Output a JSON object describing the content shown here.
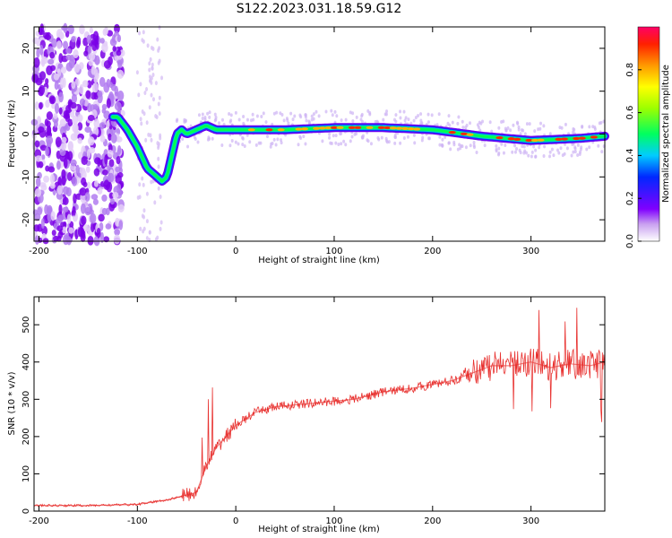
{
  "figure_title": "S122.2023.031.18.59.G12",
  "chart_data": [
    {
      "type": "heatmap",
      "xlabel": "Height of straight line (km)",
      "ylabel": "Frequency (Hz)",
      "xlim": [
        -205,
        375
      ],
      "ylim": [
        -25,
        25
      ],
      "x_ticks": [
        -200,
        -100,
        0,
        100,
        200,
        300
      ],
      "y_ticks": [
        -20,
        -10,
        0,
        10,
        20
      ],
      "colorbar": {
        "label": "Normalized spectral amplitude",
        "range": [
          0,
          1
        ],
        "ticks": [
          0.0,
          0.2,
          0.4,
          0.6,
          0.8
        ]
      },
      "dominant_frequency_trace": {
        "height_km": [
          -120,
          -110,
          -100,
          -90,
          -80,
          -75,
          -70,
          -65,
          -60,
          -55,
          -50,
          -40,
          -30,
          -20,
          0,
          50,
          100,
          150,
          200,
          250,
          300,
          350,
          375
        ],
        "frequency_hz": [
          4,
          1,
          -3,
          -8,
          -10,
          -11,
          -10,
          -5,
          0,
          1,
          0,
          1,
          2,
          1,
          1,
          1,
          1.5,
          1.5,
          1,
          -0.5,
          -1.5,
          -1,
          -0.5
        ]
      }
    },
    {
      "type": "line",
      "xlabel": "Height of straight line (km)",
      "ylabel": "SNR (10 * v/v)",
      "xlim": [
        -205,
        375
      ],
      "ylim": [
        0,
        575
      ],
      "x_ticks": [
        -200,
        -100,
        0,
        100,
        200,
        300
      ],
      "y_ticks": [
        0,
        100,
        200,
        300,
        400,
        500
      ],
      "series": [
        {
          "color": "#e8312f",
          "x": [
            -205,
            -150,
            -100,
            -70,
            -40,
            -30,
            -20,
            -10,
            0,
            20,
            40,
            60,
            80,
            100,
            120,
            150,
            180,
            200,
            220,
            240,
            260,
            280,
            300,
            320,
            340,
            360,
            375
          ],
          "y": [
            15,
            15,
            18,
            30,
            50,
            120,
            170,
            200,
            230,
            265,
            280,
            285,
            290,
            295,
            300,
            320,
            330,
            340,
            350,
            370,
            390,
            390,
            400,
            385,
            395,
            390,
            400
          ]
        }
      ]
    }
  ]
}
